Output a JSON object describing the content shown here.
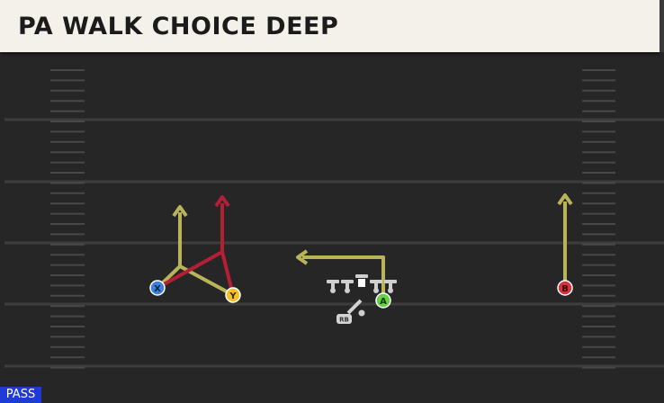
{
  "header": {
    "title": "PA WALK CHOICE DEEP"
  },
  "badge": {
    "label": "PASS"
  },
  "colors": {
    "field": "#262626",
    "yard_line": "#3d3d3d",
    "hash": "#484848",
    "route_gold": "#b9b45a",
    "route_red": "#b41f36",
    "lineman": "#cfcfcf",
    "badge_bg": "#1f3bd6"
  },
  "players": {
    "x": {
      "label": "X",
      "color": "#3f7fe0"
    },
    "y": {
      "label": "Y",
      "color": "#f2c22a"
    },
    "a": {
      "label": "A",
      "color": "#67d047"
    },
    "b": {
      "label": "B",
      "color": "#d6333f"
    },
    "rb": {
      "label": "RB"
    }
  }
}
